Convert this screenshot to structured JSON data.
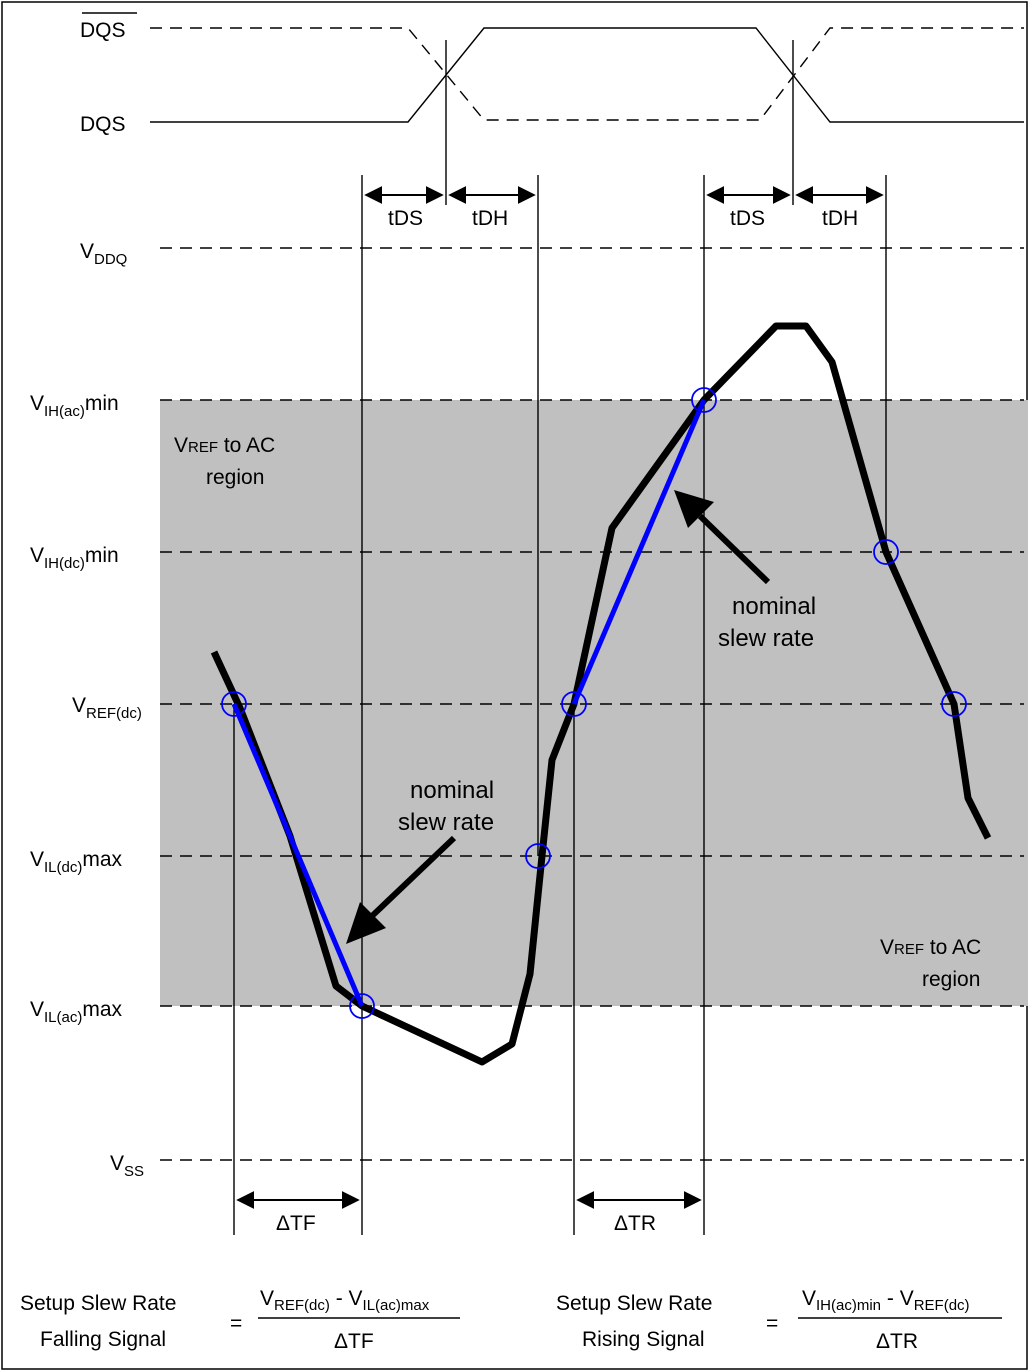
{
  "signals": {
    "dqs_bar": "DQS",
    "dqs": "DQS"
  },
  "timing": {
    "tds_1": "tDS",
    "tdh_1": "tDH",
    "tds_2": "tDS",
    "tdh_2": "tDH"
  },
  "levels": {
    "vddq": {
      "main": "V",
      "sub": "DDQ",
      "suffix": ""
    },
    "vih_ac": {
      "main": "V",
      "sub": "IH(ac)",
      "suffix": "min"
    },
    "vih_dc": {
      "main": "V",
      "sub": "IH(dc)",
      "suffix": "min"
    },
    "vref_dc": {
      "main": "V",
      "sub": "REF(dc)",
      "suffix": ""
    },
    "vil_dc": {
      "main": "V",
      "sub": "IL(dc)",
      "suffix": "max"
    },
    "vil_ac": {
      "main": "V",
      "sub": "IL(ac)",
      "suffix": "max"
    },
    "vss": {
      "main": "V",
      "sub": "SS",
      "suffix": ""
    }
  },
  "regions": {
    "upper": {
      "line1_main": "V",
      "line1_small": "REF",
      "line1_rest": " to AC",
      "line2": "region"
    },
    "lower": {
      "line1_main": "V",
      "line1_small": "REF",
      "line1_rest": " to AC",
      "line2": "region"
    }
  },
  "annotations": {
    "left_nominal_line1": "nominal",
    "left_nominal_line2": "slew rate",
    "right_nominal_line1": "nominal",
    "right_nominal_line2": "slew rate"
  },
  "deltas": {
    "tf": "ΔTF",
    "tr": "ΔTR"
  },
  "formulas": {
    "falling": {
      "title_line1": "Setup Slew Rate",
      "title_line2": "Falling Signal",
      "equals": "=",
      "num_a_main": "V",
      "num_a_sub": "REF(dc)",
      "num_op": " - ",
      "num_b_main": "V",
      "num_b_sub": "IL(ac)max",
      "den": "ΔTF"
    },
    "rising": {
      "title_line1": "Setup Slew Rate",
      "title_line2": "Rising Signal",
      "equals": "=",
      "num_a_main": "V",
      "num_a_sub": "IH(ac)min",
      "num_op": " - ",
      "num_b_main": "V",
      "num_b_sub": "REF(dc)",
      "den": "ΔTR"
    }
  },
  "colors": {
    "region_fill": "#c0c0c0",
    "waveform": "#000000",
    "nominal": "#0000ff",
    "marker": "#0000ff"
  }
}
